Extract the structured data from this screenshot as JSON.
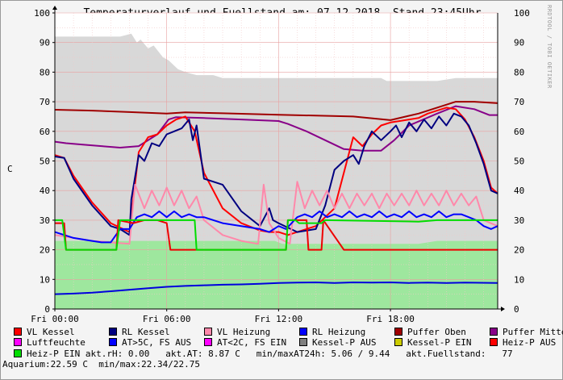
{
  "title": "Temperaturverlauf und Fuellstand am: 07.12.2018, Stand 23:45Uhr",
  "watermark": "RRDTOOL / TOBI OETIKER",
  "chart_data": {
    "type": "line",
    "ylabel": "C",
    "ylim": [
      0,
      100
    ],
    "yticks": [
      "0",
      "10",
      "20",
      "30",
      "40",
      "50",
      "60",
      "70",
      "80",
      "90",
      "100"
    ],
    "xlim": [
      0,
      23.75
    ],
    "xticks": [
      {
        "t": 0,
        "label": "Fri 00:00"
      },
      {
        "t": 6,
        "label": "Fri 06:00"
      },
      {
        "t": 12,
        "label": "Fri 12:00"
      },
      {
        "t": 18,
        "label": "Fri 18:00"
      }
    ],
    "areas": [
      {
        "name": "Kessel-P AUS",
        "color": "#d8d8d8",
        "points": [
          [
            0,
            92
          ],
          [
            3.5,
            92
          ],
          [
            4.1,
            93
          ],
          [
            4.4,
            90
          ],
          [
            4.6,
            91
          ],
          [
            5.0,
            88
          ],
          [
            5.3,
            89
          ],
          [
            5.8,
            85
          ],
          [
            6.1,
            84
          ],
          [
            6.6,
            81
          ],
          [
            7.0,
            80
          ],
          [
            7.6,
            79
          ],
          [
            8.5,
            79
          ],
          [
            9.0,
            78
          ],
          [
            16.5,
            78
          ],
          [
            16.8,
            78
          ],
          [
            17.5,
            78
          ],
          [
            17.8,
            77
          ],
          [
            20.5,
            77
          ],
          [
            21.5,
            78
          ],
          [
            23.75,
            78
          ]
        ]
      },
      {
        "name": "Heiz-P EIN",
        "color": "#9ee79e",
        "points": [
          [
            0,
            23
          ],
          [
            11.8,
            23
          ],
          [
            12.2,
            22
          ],
          [
            19.5,
            22
          ],
          [
            20.5,
            23
          ],
          [
            23.75,
            23
          ]
        ]
      }
    ],
    "series": [
      {
        "name": "Puffer Oben",
        "color": "#a00000",
        "x": [
          0,
          2,
          4,
          6,
          7,
          9,
          12,
          16,
          18,
          19.5,
          20.5,
          21.5,
          22.5,
          23.75
        ],
        "y": [
          67.3,
          67,
          66.5,
          66,
          66.4,
          66.1,
          65.6,
          65,
          63.8,
          66,
          68,
          70,
          70,
          69.5
        ]
      },
      {
        "name": "Puffer Mitte",
        "color": "#880088",
        "x": [
          0,
          0.6,
          1.5,
          2.5,
          3.5,
          4.5,
          5.5,
          6.1,
          6.5,
          8,
          10,
          12,
          12.5,
          13.5,
          14.5,
          15.5,
          16.5,
          17.5,
          18.2,
          19,
          20.5,
          21.5,
          22.5,
          23.3,
          23.75
        ],
        "y": [
          56.5,
          56,
          55.5,
          55,
          54.5,
          55,
          59,
          64,
          64.8,
          64.5,
          64,
          63.5,
          62.5,
          60,
          57,
          54,
          53.5,
          53.5,
          57,
          62,
          66,
          68.5,
          67.5,
          65.5,
          65.5
        ]
      },
      {
        "name": "VL Kessel",
        "color": "#ff0000",
        "x": [
          0,
          0.5,
          1,
          2,
          3,
          4,
          4.5,
          5,
          5.5,
          6,
          6.5,
          7,
          7.5,
          8,
          9,
          10,
          11,
          11.5,
          12,
          12.5,
          13,
          14,
          15,
          16,
          16.5,
          17,
          17.5,
          18,
          18.5,
          19,
          19.5,
          20,
          20.5,
          21,
          21.5,
          22,
          22.5,
          23,
          23.4,
          23.75
        ],
        "y": [
          52,
          51,
          45,
          36,
          29,
          26,
          53,
          58,
          59,
          62,
          64,
          65,
          60,
          46,
          34,
          29,
          26.5,
          26,
          26,
          25,
          26,
          28,
          34,
          58,
          55,
          59,
          62,
          63,
          63.5,
          64,
          64.5,
          66,
          67,
          68,
          67.5,
          64,
          58,
          50,
          41,
          39
        ]
      },
      {
        "name": "RL Kessel",
        "color": "#000080",
        "x": [
          0,
          0.5,
          1,
          2,
          3,
          3.5,
          4,
          4.1,
          4.5,
          4.8,
          5.2,
          5.6,
          6,
          6.4,
          6.8,
          7.2,
          7.4,
          7.6,
          8,
          9,
          10,
          11,
          11.5,
          11.7,
          12,
          13,
          14,
          14.5,
          15,
          15.5,
          16,
          16.3,
          16.6,
          17,
          17.5,
          18,
          18.3,
          18.6,
          19,
          19.4,
          19.8,
          20.2,
          20.6,
          21,
          21.4,
          21.8,
          22.2,
          22.6,
          23,
          23.4,
          23.75
        ],
        "y": [
          51.5,
          51,
          44,
          35,
          28,
          27,
          25,
          37,
          52,
          50,
          56,
          55,
          59,
          60,
          61,
          64,
          57,
          62,
          44,
          42,
          33,
          28,
          34,
          30,
          29,
          26,
          27,
          35,
          47,
          50,
          52,
          49,
          55,
          60,
          57,
          60,
          62,
          58,
          63,
          60,
          64,
          61,
          65,
          62,
          66,
          65,
          62,
          56,
          49,
          40,
          39
        ]
      },
      {
        "name": "VL Heizung",
        "color": "#ff88aa",
        "x": [
          0,
          1,
          2,
          3,
          4,
          4.3,
          4.8,
          5.2,
          5.6,
          6,
          6.4,
          6.8,
          7.2,
          7.6,
          8,
          9,
          10,
          10.9,
          11.2,
          11.5,
          12,
          12.6,
          13,
          13.4,
          13.8,
          14.2,
          14.6,
          15,
          15.4,
          15.8,
          16.2,
          16.6,
          17,
          17.4,
          17.8,
          18.2,
          18.6,
          19,
          19.4,
          19.8,
          20.2,
          20.6,
          21,
          21.4,
          21.8,
          22.2,
          22.6,
          23,
          23.75
        ],
        "y": [
          25,
          24,
          23,
          22.5,
          22,
          42,
          34,
          40,
          35,
          41,
          35,
          40,
          34,
          38,
          30,
          25,
          23,
          22,
          42,
          29,
          24,
          22,
          43,
          34,
          40,
          35,
          40,
          34,
          39,
          34,
          39,
          35,
          39,
          34,
          39,
          35,
          39,
          35,
          40,
          35,
          39,
          35,
          40,
          35,
          39,
          35,
          38,
          30,
          28
        ]
      },
      {
        "name": "RL Heizung",
        "color": "#0000ff",
        "x": [
          0,
          1,
          2,
          2.5,
          3,
          3.5,
          4,
          4.4,
          4.8,
          5.2,
          5.6,
          6,
          6.4,
          6.8,
          7.2,
          7.6,
          8,
          9,
          10,
          11,
          11.5,
          12,
          12.4,
          13,
          13.4,
          13.8,
          14.2,
          14.6,
          15,
          15.4,
          15.8,
          16.2,
          16.6,
          17,
          17.4,
          17.8,
          18.2,
          18.6,
          19,
          19.4,
          19.8,
          20.2,
          20.6,
          21,
          21.4,
          21.8,
          22.2,
          22.6,
          23,
          23.4,
          23.75
        ],
        "y": [
          26,
          24,
          23,
          22.5,
          22.5,
          27,
          27,
          31,
          32,
          31,
          33,
          31,
          33,
          31,
          32,
          31,
          31,
          29,
          28,
          27,
          26,
          28,
          27,
          31,
          32,
          31,
          33,
          31,
          32,
          31,
          33,
          31,
          32,
          31,
          33,
          31,
          32,
          31,
          33,
          31,
          32,
          31,
          33,
          31,
          32,
          32,
          31,
          30,
          28,
          27,
          28
        ]
      },
      {
        "name": "Heiz-P AUS",
        "color": "#ee0000",
        "x": [
          0,
          0.5,
          0.6,
          3.3,
          3.4,
          4.2,
          4.8,
          5.5,
          6,
          6.2,
          7.5,
          7.6,
          10,
          12.4,
          12.5,
          13.5,
          13.6,
          14.3,
          14.4,
          15.5,
          23.75
        ],
        "y": [
          29,
          29,
          20,
          20,
          30,
          29,
          30,
          30,
          29,
          20,
          20,
          20,
          20,
          20,
          30,
          30,
          20,
          20,
          30,
          20,
          20
        ]
      },
      {
        "name": "Heiz-P EIN",
        "color": "#00dd00",
        "x": [
          0,
          0.4,
          0.6,
          3.3,
          3.5,
          7.5,
          7.6,
          12.4,
          12.5,
          12.9,
          13.1,
          14.3,
          14.5,
          19.5,
          20.5,
          22,
          23.75
        ],
        "y": [
          30,
          30,
          20,
          20,
          30,
          30,
          20,
          20,
          30,
          30,
          29,
          29,
          30,
          29.5,
          30,
          30,
          30
        ]
      },
      {
        "name": "Luftfeuchte",
        "color": "#0000dd",
        "x": [
          0,
          1,
          2,
          3,
          4,
          5,
          6,
          7,
          8,
          9,
          10,
          11,
          12,
          13,
          14,
          15,
          16,
          17,
          18,
          19,
          20,
          21,
          22,
          23.75
        ],
        "y": [
          5,
          5.2,
          5.5,
          6,
          6.5,
          7,
          7.5,
          7.8,
          8,
          8.2,
          8.3,
          8.5,
          8.8,
          8.9,
          9,
          8.8,
          9,
          8.9,
          9,
          8.8,
          8.9,
          8.8,
          8.9,
          8.8
        ]
      }
    ],
    "legend": [
      [
        {
          "color": "#ff0000",
          "label": "VL Kessel"
        },
        {
          "color": "#000080",
          "label": "RL Kessel"
        },
        {
          "color": "#ff88aa",
          "label": "VL Heizung"
        },
        {
          "color": "#0000ff",
          "label": "RL Heizung"
        },
        {
          "color": "#a00000",
          "label": "Puffer Oben"
        },
        {
          "color": "#880088",
          "label": "Puffer Mitte"
        }
      ],
      [
        {
          "color": "#ff00ff",
          "label": "Luftfeuchte"
        },
        {
          "color": "#0000ff",
          "label": "AT>5C, FS AUS"
        },
        {
          "color": "#ff00ff",
          "label": "AT<2C, FS EIN"
        },
        {
          "color": "#808080",
          "label": "Kessel-P AUS"
        },
        {
          "color": "#cccc00",
          "label": "Kessel-P EIN"
        },
        {
          "color": "#ff0000",
          "label": "Heiz-P AUS"
        }
      ]
    ],
    "status_line_1_label": "Heiz-P EIN",
    "status_line_1_color": "#00dd00",
    "status_line_1_text": "akt.rH: 0.00   akt.AT: 8.87 C   min/maxAT24h: 5.06 / 9.44   akt.Fuellstand:   77",
    "status_line_2_text": "Aquarium:22.59 C  min/max:22.34/22.75"
  }
}
